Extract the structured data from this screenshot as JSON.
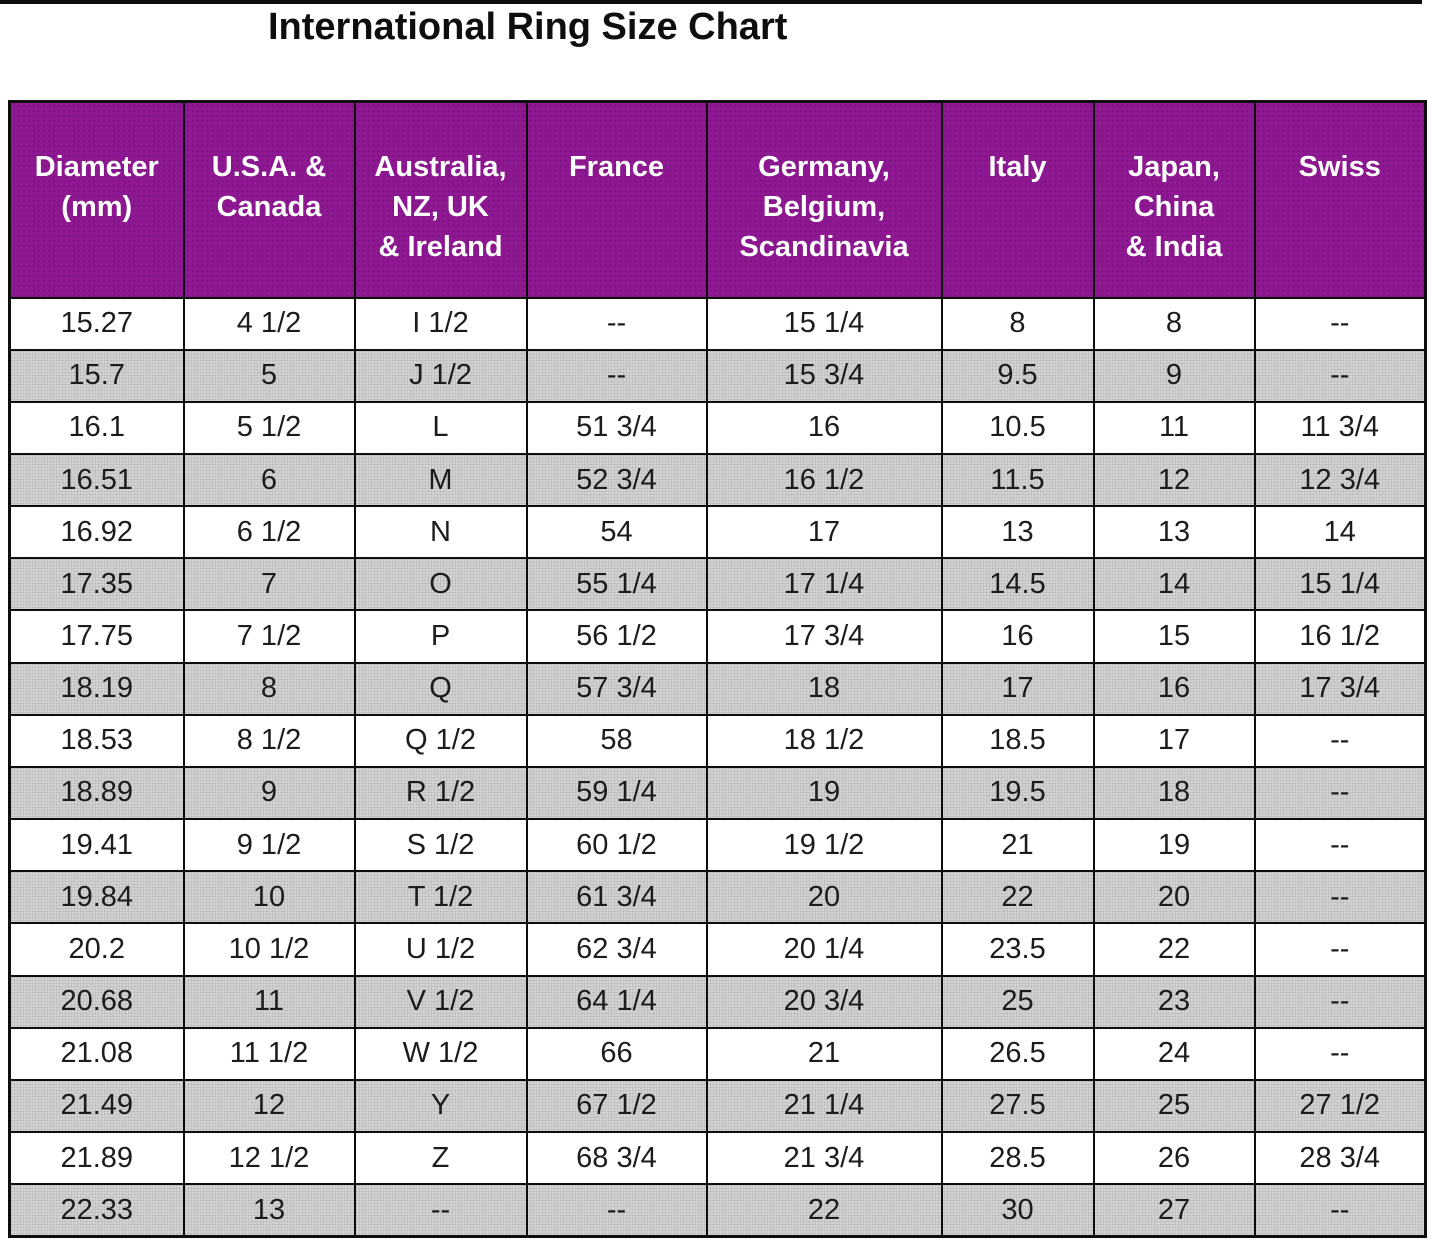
{
  "title": "International Ring Size Chart",
  "colors": {
    "header_bg": "#8e1792",
    "header_text": "#ffffff",
    "row_alt_bg": "#d2d2d2",
    "border": "#0d0d0d"
  },
  "table": {
    "header_keys": [
      "diameter-mm",
      "usa-canada",
      "australia-nz-uk-ireland",
      "france",
      "germany-belgium-scandinavia",
      "italy",
      "japan-china-india",
      "swiss"
    ],
    "header_lines": [
      [
        "Diameter",
        "(mm)"
      ],
      [
        "U.S.A. &",
        "Canada"
      ],
      [
        "Australia,",
        "NZ, UK",
        "& Ireland"
      ],
      [
        "France"
      ],
      [
        "Germany,",
        "Belgium,",
        "Scandinavia"
      ],
      [
        "Italy"
      ],
      [
        "Japan,",
        "China",
        "& India"
      ],
      [
        "Swiss"
      ]
    ]
  },
  "chart_data": {
    "type": "table",
    "title": "International Ring Size Chart",
    "columns": [
      "Diameter (mm)",
      "U.S.A. & Canada",
      "Australia, NZ, UK & Ireland",
      "France",
      "Germany, Belgium, Scandinavia",
      "Italy",
      "Japan, China & India",
      "Swiss"
    ],
    "rows": [
      [
        "15.27",
        "4 1/2",
        "I 1/2",
        "--",
        "15 1/4",
        "8",
        "8",
        "--"
      ],
      [
        "15.7",
        "5",
        "J 1/2",
        "--",
        "15 3/4",
        "9.5",
        "9",
        "--"
      ],
      [
        "16.1",
        "5 1/2",
        "L",
        "51 3/4",
        "16",
        "10.5",
        "11",
        "11 3/4"
      ],
      [
        "16.51",
        "6",
        "M",
        "52 3/4",
        "16 1/2",
        "11.5",
        "12",
        "12 3/4"
      ],
      [
        "16.92",
        "6 1/2",
        "N",
        "54",
        "17",
        "13",
        "13",
        "14"
      ],
      [
        "17.35",
        "7",
        "O",
        "55 1/4",
        "17 1/4",
        "14.5",
        "14",
        "15 1/4"
      ],
      [
        "17.75",
        "7 1/2",
        "P",
        "56 1/2",
        "17 3/4",
        "16",
        "15",
        "16 1/2"
      ],
      [
        "18.19",
        "8",
        "Q",
        "57 3/4",
        "18",
        "17",
        "16",
        "17 3/4"
      ],
      [
        "18.53",
        "8 1/2",
        "Q 1/2",
        "58",
        "18 1/2",
        "18.5",
        "17",
        "--"
      ],
      [
        "18.89",
        "9",
        "R 1/2",
        "59 1/4",
        "19",
        "19.5",
        "18",
        "--"
      ],
      [
        "19.41",
        "9 1/2",
        "S 1/2",
        "60 1/2",
        "19 1/2",
        "21",
        "19",
        "--"
      ],
      [
        "19.84",
        "10",
        "T 1/2",
        "61 3/4",
        "20",
        "22",
        "20",
        "--"
      ],
      [
        "20.2",
        "10 1/2",
        "U 1/2",
        "62 3/4",
        "20 1/4",
        "23.5",
        "22",
        "--"
      ],
      [
        "20.68",
        "11",
        "V 1/2",
        "64 1/4",
        "20 3/4",
        "25",
        "23",
        "--"
      ],
      [
        "21.08",
        "11 1/2",
        "W 1/2",
        "66",
        "21",
        "26.5",
        "24",
        "--"
      ],
      [
        "21.49",
        "12",
        "Y",
        "67 1/2",
        "21 1/4",
        "27.5",
        "25",
        "27 1/2"
      ],
      [
        "21.89",
        "12 1/2",
        "Z",
        "68 3/4",
        "21 3/4",
        "28.5",
        "26",
        "28 3/4"
      ],
      [
        "22.33",
        "13",
        "--",
        "--",
        "22",
        "30",
        "27",
        "--"
      ]
    ]
  }
}
